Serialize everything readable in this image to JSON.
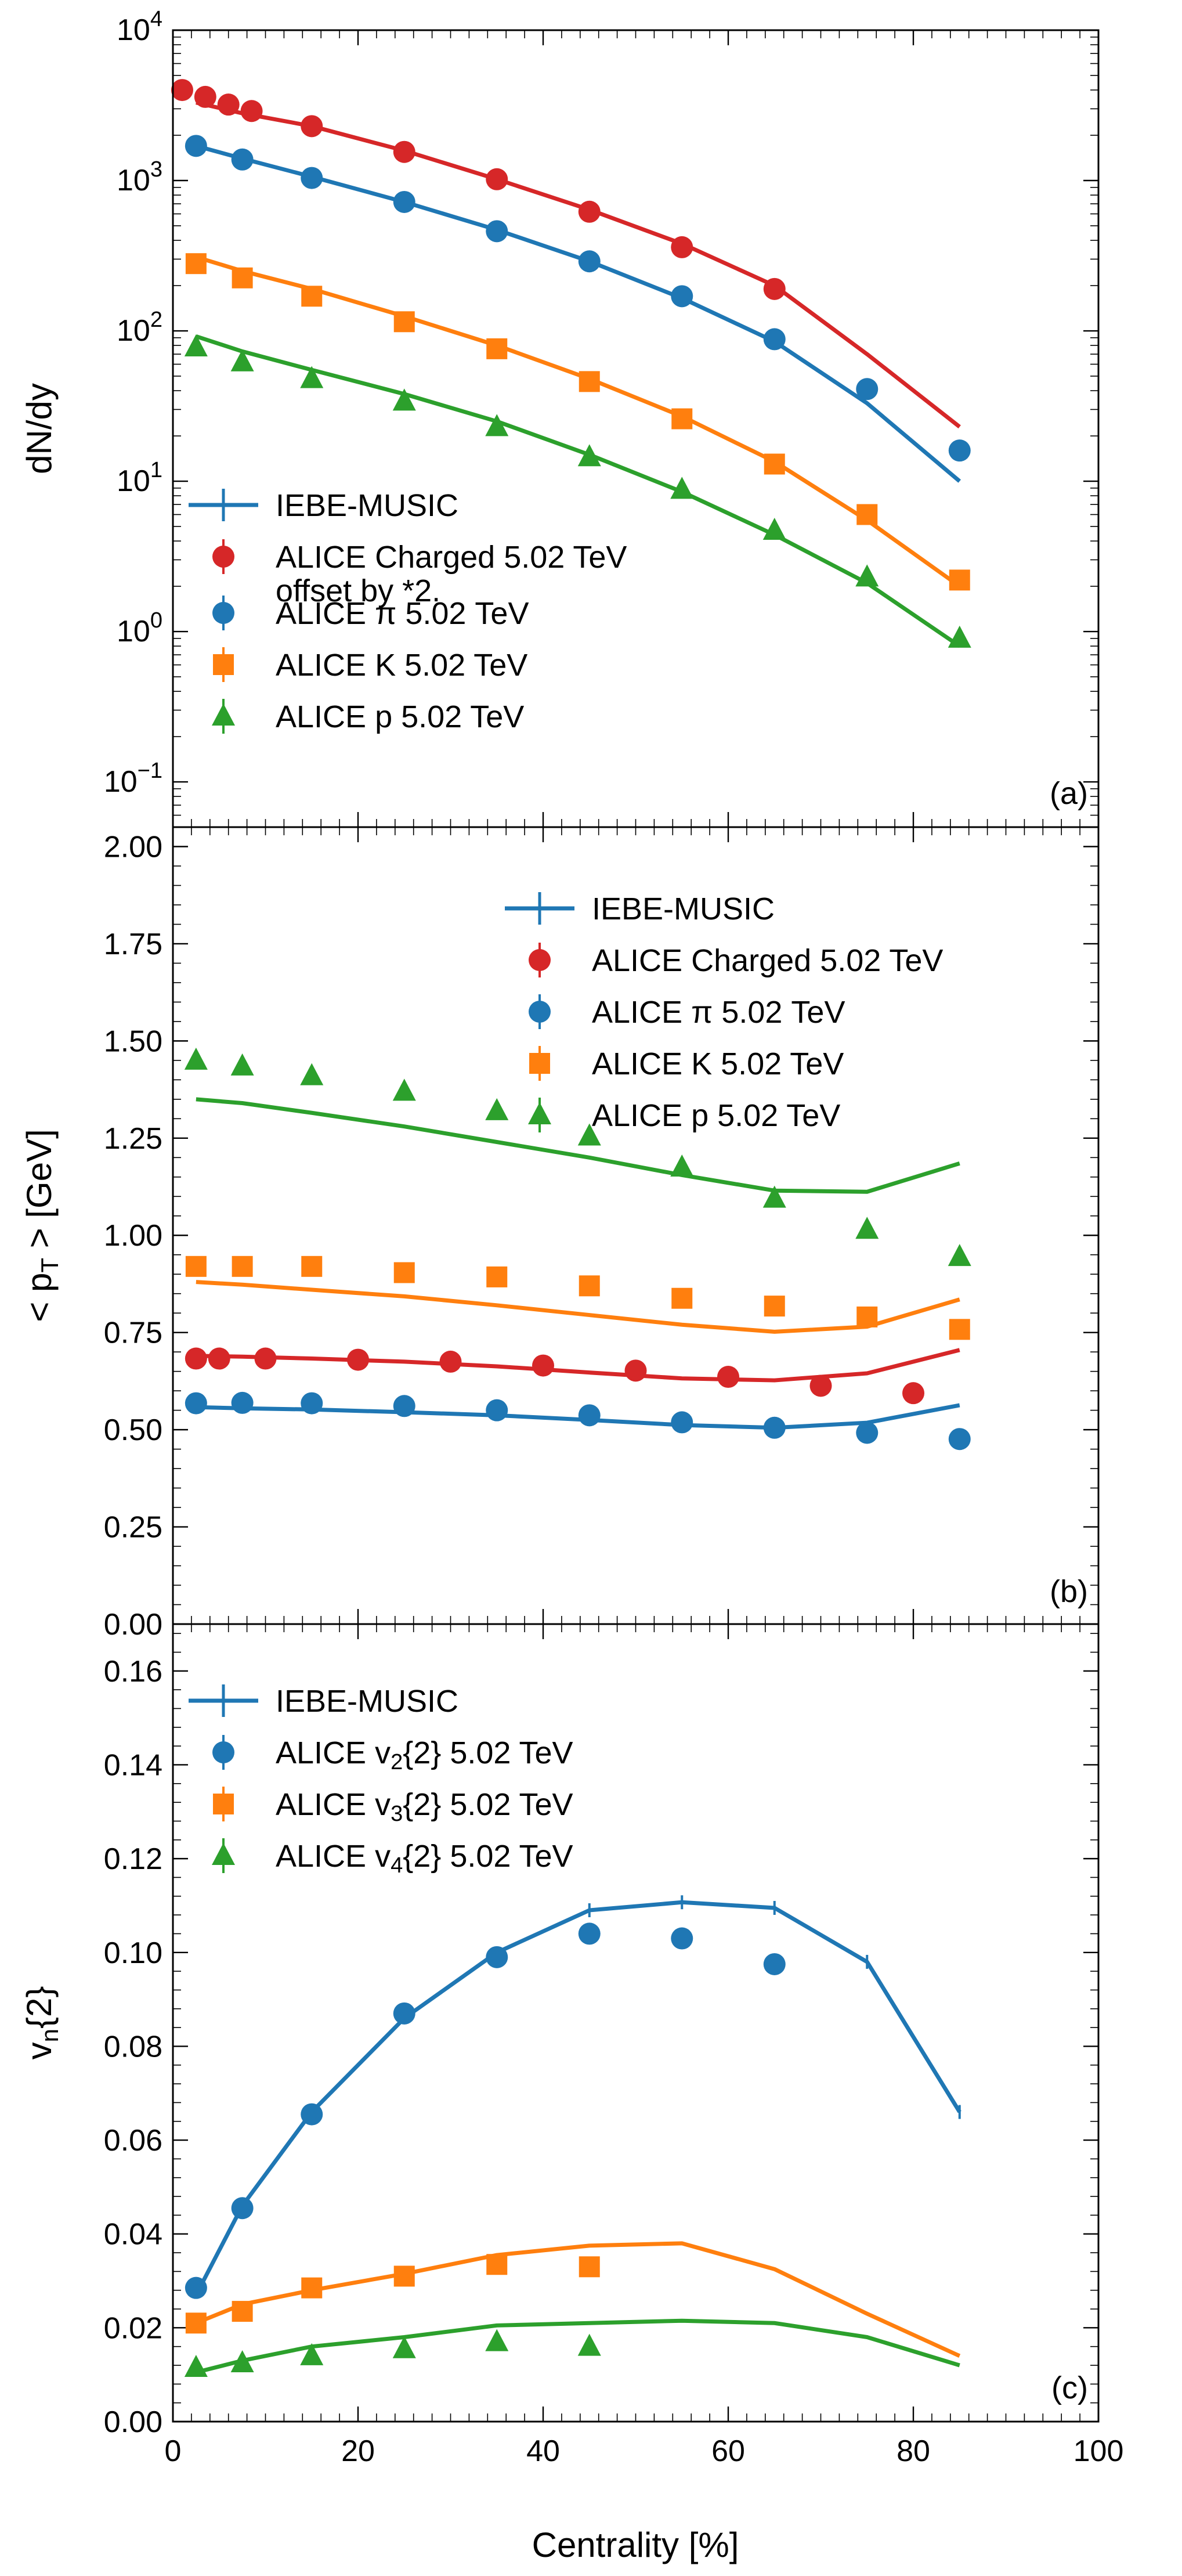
{
  "colors": {
    "charged": "#d62728",
    "pion": "#1f77b4",
    "kaon": "#ff7f0e",
    "proton": "#2ca02c",
    "v2": "#1f77b4",
    "v3": "#ff7f0e",
    "v4": "#2ca02c"
  },
  "shared_x": {
    "label": "Centrality  [%]",
    "range": [
      0,
      100
    ],
    "ticks": [
      0,
      20,
      40,
      60,
      80,
      100
    ],
    "tick_labels": [
      "0",
      "20",
      "40",
      "60",
      "80",
      "100"
    ]
  },
  "chart_data": [
    {
      "id": "panel-a",
      "type": "line+scatter",
      "scale": "log",
      "panel_label": "(a)",
      "ylabel": "dN/dy",
      "ylim": [
        0.05,
        10000
      ],
      "y_ticks": [
        0.1,
        1,
        10,
        100,
        1000,
        10000
      ],
      "y_tick_labels": [
        {
          "base": "10",
          "exp": "−1"
        },
        {
          "base": "10",
          "exp": "0"
        },
        {
          "base": "10",
          "exp": "1"
        },
        {
          "base": "10",
          "exp": "2"
        },
        {
          "base": "10",
          "exp": "3"
        },
        {
          "base": "10",
          "exp": "4"
        }
      ],
      "legend": [
        {
          "kind": "line",
          "color": "pion",
          "text": "IEBE-MUSIC"
        },
        {
          "kind": "circle",
          "color": "charged",
          "text": "ALICE Charged 5.02 TeV",
          "text2": " offset by *2."
        },
        {
          "kind": "circle",
          "color": "pion",
          "text": "ALICE π 5.02 TeV"
        },
        {
          "kind": "square",
          "color": "kaon",
          "text": "ALICE K 5.02 TeV"
        },
        {
          "kind": "triangle",
          "color": "proton",
          "text": "ALICE p 5.02 TeV"
        }
      ],
      "lines": [
        {
          "name": "Charged model",
          "color": "charged",
          "x": [
            2.5,
            7.5,
            15,
            25,
            35,
            45,
            55,
            65,
            75,
            85
          ],
          "y": [
            3300,
            2800,
            2300,
            1580,
            1020,
            640,
            380,
            200,
            70,
            23
          ]
        },
        {
          "name": "π model",
          "color": "pion",
          "x": [
            2.5,
            7.5,
            15,
            25,
            35,
            45,
            55,
            65,
            75,
            85
          ],
          "y": [
            1700,
            1400,
            1060,
            720,
            470,
            290,
            165,
            85,
            33,
            10
          ]
        },
        {
          "name": "K model",
          "color": "kaon",
          "x": [
            2.5,
            7.5,
            15,
            25,
            35,
            45,
            55,
            65,
            75,
            85
          ],
          "y": [
            310,
            250,
            190,
            125,
            80,
            48,
            27,
            13.5,
            5.5,
            2
          ]
        },
        {
          "name": "p model",
          "color": "proton",
          "x": [
            2.5,
            7.5,
            15,
            25,
            35,
            45,
            55,
            65,
            75,
            85
          ],
          "y": [
            92,
            73,
            55,
            38,
            25,
            15,
            8.5,
            4.4,
            2.1,
            0.8
          ]
        }
      ],
      "points": [
        {
          "name": "ALICE Charged 5.02 TeV",
          "marker": "circle",
          "color": "charged",
          "x": [
            1,
            3.5,
            6,
            8.5,
            15,
            25,
            35,
            45,
            55,
            65
          ],
          "y": [
            4000,
            3600,
            3200,
            2900,
            2300,
            1550,
            1020,
            620,
            360,
            190
          ]
        },
        {
          "name": "ALICE π 5.02 TeV",
          "marker": "circle",
          "color": "pion",
          "x": [
            2.5,
            7.5,
            15,
            25,
            35,
            45,
            55,
            65,
            75,
            85
          ],
          "y": [
            1700,
            1380,
            1040,
            720,
            460,
            290,
            170,
            88,
            41,
            16
          ]
        },
        {
          "name": "ALICE K 5.02 TeV",
          "marker": "square",
          "color": "kaon",
          "x": [
            2.5,
            7.5,
            15,
            25,
            35,
            45,
            55,
            65,
            75,
            85
          ],
          "y": [
            280,
            225,
            170,
            115,
            76,
            46,
            26,
            13,
            6,
            2.2
          ]
        },
        {
          "name": "ALICE p 5.02 TeV",
          "marker": "triangle",
          "color": "proton",
          "x": [
            2.5,
            7.5,
            15,
            25,
            35,
            45,
            55,
            65,
            75,
            85
          ],
          "y": [
            78,
            62,
            48,
            34,
            23,
            14.5,
            8.8,
            4.7,
            2.3,
            0.9
          ]
        }
      ]
    },
    {
      "id": "panel-b",
      "type": "line+scatter",
      "scale": "linear",
      "panel_label": "(b)",
      "ylabel": "< p",
      "ylabel_sub": "T",
      "ylabel_tail": " > [GeV]",
      "ylim": [
        0,
        2.05
      ],
      "y_ticks": [
        0,
        0.25,
        0.5,
        0.75,
        1,
        1.25,
        1.5,
        1.75,
        2
      ],
      "y_tick_labels": [
        "0.00",
        "0.25",
        "0.50",
        "0.75",
        "1.00",
        "1.25",
        "1.50",
        "1.75",
        "2.00"
      ],
      "legend": [
        {
          "kind": "line",
          "color": "pion",
          "text": "IEBE-MUSIC"
        },
        {
          "kind": "circle",
          "color": "charged",
          "text": "ALICE Charged 5.02 TeV"
        },
        {
          "kind": "circle",
          "color": "pion",
          "text": "ALICE π 5.02 TeV"
        },
        {
          "kind": "square",
          "color": "kaon",
          "text": "ALICE K 5.02 TeV"
        },
        {
          "kind": "triangle",
          "color": "proton",
          "text": "ALICE p 5.02 TeV"
        }
      ],
      "lines": [
        {
          "name": "Charged model",
          "color": "charged",
          "x": [
            2.5,
            7.5,
            15,
            25,
            35,
            45,
            55,
            65,
            75,
            85
          ],
          "y": [
            0.69,
            0.688,
            0.683,
            0.675,
            0.663,
            0.647,
            0.632,
            0.627,
            0.645,
            0.705
          ]
        },
        {
          "name": "π model",
          "color": "pion",
          "x": [
            2.5,
            7.5,
            15,
            25,
            35,
            45,
            55,
            65,
            75,
            85
          ],
          "y": [
            0.558,
            0.555,
            0.552,
            0.545,
            0.537,
            0.525,
            0.512,
            0.505,
            0.518,
            0.563
          ]
        },
        {
          "name": "K model",
          "color": "kaon",
          "x": [
            2.5,
            7.5,
            15,
            25,
            35,
            45,
            55,
            65,
            75,
            85
          ],
          "y": [
            0.88,
            0.873,
            0.86,
            0.843,
            0.82,
            0.795,
            0.77,
            0.752,
            0.765,
            0.835
          ]
        },
        {
          "name": "p model",
          "color": "proton",
          "x": [
            2.5,
            7.5,
            15,
            25,
            35,
            45,
            55,
            65,
            75,
            85
          ],
          "y": [
            1.35,
            1.34,
            1.315,
            1.28,
            1.24,
            1.2,
            1.155,
            1.115,
            1.112,
            1.185
          ]
        }
      ],
      "points": [
        {
          "name": "ALICE Charged 5.02 TeV",
          "marker": "circle",
          "color": "charged",
          "x": [
            2.5,
            5,
            10,
            20,
            30,
            40,
            50,
            60,
            70,
            80
          ],
          "y": [
            0.683,
            0.683,
            0.683,
            0.68,
            0.675,
            0.665,
            0.652,
            0.636,
            0.613,
            0.594
          ]
        },
        {
          "name": "ALICE π 5.02 TeV",
          "marker": "circle",
          "color": "pion",
          "x": [
            2.5,
            7.5,
            15,
            25,
            35,
            45,
            55,
            65,
            75,
            85
          ],
          "y": [
            0.568,
            0.569,
            0.568,
            0.561,
            0.55,
            0.537,
            0.519,
            0.505,
            0.492,
            0.476
          ]
        },
        {
          "name": "ALICE K 5.02 TeV",
          "marker": "square",
          "color": "kaon",
          "x": [
            2.5,
            7.5,
            15,
            25,
            35,
            45,
            55,
            65,
            75,
            85
          ],
          "y": [
            0.92,
            0.92,
            0.92,
            0.904,
            0.893,
            0.87,
            0.838,
            0.818,
            0.79,
            0.758
          ]
        },
        {
          "name": "ALICE p 5.02 TeV",
          "marker": "triangle",
          "color": "proton",
          "x": [
            2.5,
            7.5,
            15,
            25,
            35,
            45,
            55,
            65,
            75,
            85
          ],
          "y": [
            1.45,
            1.435,
            1.41,
            1.37,
            1.32,
            1.255,
            1.175,
            1.095,
            1.015,
            0.945
          ]
        }
      ]
    },
    {
      "id": "panel-c",
      "type": "line+scatter",
      "scale": "linear",
      "panel_label": "(c)",
      "ylabel": "v",
      "ylabel_sub": "n",
      "ylabel_tail": "{2}",
      "ylim": [
        0,
        0.17
      ],
      "y_ticks": [
        0,
        0.02,
        0.04,
        0.06,
        0.08,
        0.1,
        0.12,
        0.14,
        0.16
      ],
      "y_tick_labels": [
        "0.00",
        "0.02",
        "0.04",
        "0.06",
        "0.08",
        "0.10",
        "0.12",
        "0.14",
        "0.16"
      ],
      "legend": [
        {
          "kind": "line",
          "color": "v2",
          "text": "IEBE-MUSIC"
        },
        {
          "kind": "circle",
          "color": "v2",
          "text": "ALICE v",
          "sub": "2",
          "tail": "{2} 5.02 TeV"
        },
        {
          "kind": "square",
          "color": "v3",
          "text": "ALICE v",
          "sub": "3",
          "tail": "{2} 5.02 TeV"
        },
        {
          "kind": "triangle",
          "color": "v4",
          "text": "ALICE v",
          "sub": "4",
          "tail": "{2} 5.02 TeV"
        }
      ],
      "lines": [
        {
          "name": "v2 model",
          "color": "v2",
          "x": [
            2.5,
            7.5,
            15,
            25,
            35,
            45,
            55,
            65,
            75,
            85
          ],
          "y": [
            0.027,
            0.046,
            0.066,
            0.086,
            0.1,
            0.109,
            0.1107,
            0.1095,
            0.098,
            0.066
          ]
        },
        {
          "name": "v3 model",
          "color": "v3",
          "x": [
            2.5,
            7.5,
            15,
            25,
            35,
            45,
            55,
            65,
            75,
            85
          ],
          "y": [
            0.021,
            0.025,
            0.028,
            0.0315,
            0.0355,
            0.0375,
            0.038,
            0.0325,
            0.023,
            0.014
          ]
        },
        {
          "name": "v4 model",
          "color": "v4",
          "x": [
            2.5,
            7.5,
            15,
            25,
            35,
            45,
            55,
            65,
            75,
            85
          ],
          "y": [
            0.0105,
            0.013,
            0.016,
            0.018,
            0.0205,
            0.021,
            0.0215,
            0.021,
            0.018,
            0.012
          ]
        }
      ],
      "points": [
        {
          "name": "ALICE v2{2} 5.02 TeV",
          "marker": "circle",
          "color": "v2",
          "x": [
            2.5,
            7.5,
            15,
            25,
            35,
            45,
            55,
            65
          ],
          "y": [
            0.0285,
            0.0455,
            0.0655,
            0.087,
            0.099,
            0.104,
            0.103,
            0.0975
          ]
        },
        {
          "name": "ALICE v3{2} 5.02 TeV",
          "marker": "square",
          "color": "v3",
          "x": [
            2.5,
            7.5,
            15,
            25,
            35,
            45
          ],
          "y": [
            0.021,
            0.0235,
            0.0285,
            0.031,
            0.0335,
            0.033
          ]
        },
        {
          "name": "ALICE v4{2} 5.02 TeV",
          "marker": "triangle",
          "color": "v4",
          "x": [
            2.5,
            7.5,
            15,
            25,
            35,
            45
          ],
          "y": [
            0.0115,
            0.0125,
            0.014,
            0.0155,
            0.017,
            0.016
          ]
        }
      ]
    }
  ]
}
